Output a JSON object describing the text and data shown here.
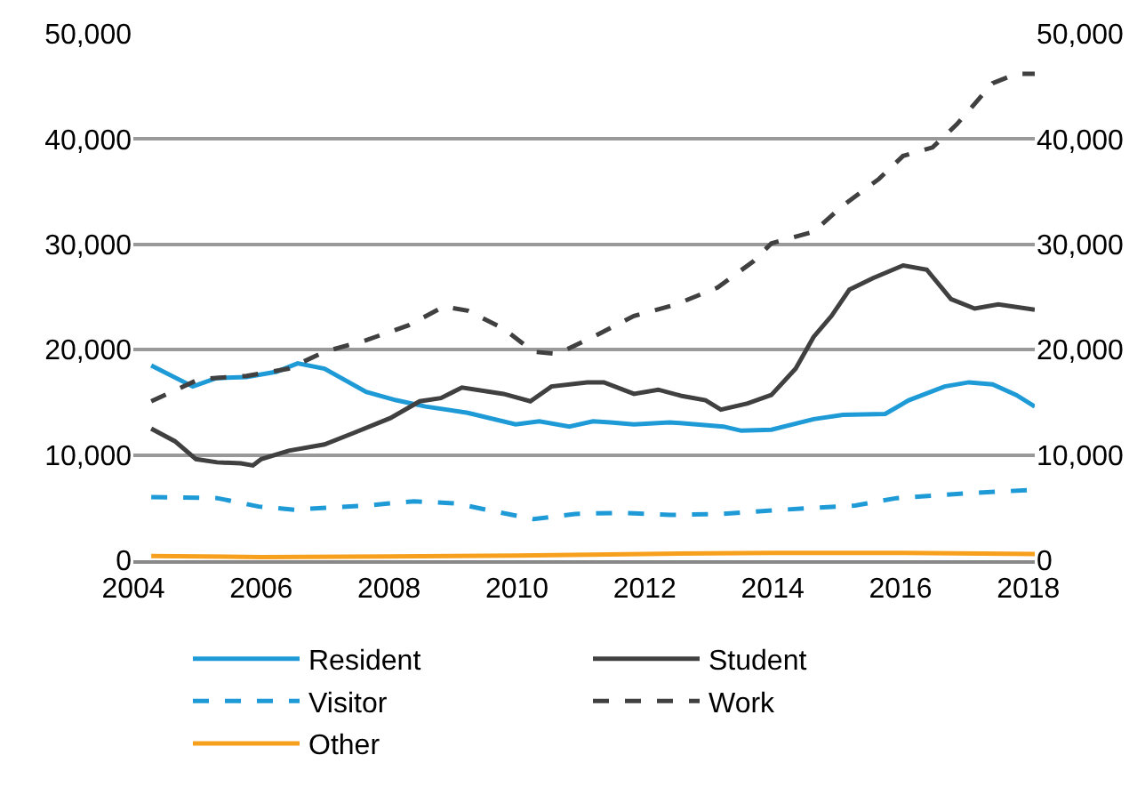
{
  "chart_data": {
    "type": "line",
    "legend": "bottom",
    "grid": "y",
    "marker": "none",
    "xlim": [
      2004,
      2018.1
    ],
    "xticks": [
      2004,
      2006,
      2008,
      2010,
      2012,
      2014,
      2016,
      2018
    ],
    "ylim": [
      0,
      50000
    ],
    "yticks": [
      0,
      {
        "value": 10000,
        "label": "10,000"
      },
      {
        "value": 20000,
        "label": "20,000"
      },
      {
        "value": 30000,
        "label": "30,000"
      },
      {
        "value": 40000,
        "label": "40,000"
      },
      {
        "value": 50000,
        "label": "50,000"
      }
    ],
    "y2lim": [
      0,
      50000
    ],
    "y2ticks": [
      0,
      {
        "value": 10000,
        "label": "10,000"
      },
      {
        "value": 20000,
        "label": "20,000"
      },
      {
        "value": 30000,
        "label": "30,000"
      },
      {
        "value": 40000,
        "label": "40,000"
      },
      {
        "value": 50000,
        "label": "50,000"
      }
    ],
    "series": [
      {
        "name": "Resident",
        "color": "#1e9bd7",
        "line_style": "solid",
        "x": [
          2004.28,
          2004.93,
          2005.3,
          2005.77,
          2006.24,
          2006.57,
          2006.99,
          2007.64,
          2008.11,
          2008.57,
          2009.23,
          2009.98,
          2010.35,
          2010.82,
          2011.19,
          2011.46,
          2011.83,
          2012.39,
          2013.23,
          2013.51,
          2013.98,
          2014.64,
          2015.1,
          2015.76,
          2016.13,
          2016.69,
          2017.07,
          2017.44,
          2017.81,
          2018.1
        ],
        "values": [
          18500,
          16500,
          17300,
          17400,
          17900,
          18700,
          18200,
          16000,
          15200,
          14600,
          14000,
          12900,
          13200,
          12700,
          13200,
          13100,
          12900,
          13100,
          12700,
          12300,
          12400,
          13400,
          13800,
          13900,
          15200,
          16500,
          16900,
          16700,
          15700,
          14600
        ]
      },
      {
        "name": "Student",
        "color": "#404040",
        "line_style": "solid",
        "x": [
          2004.28,
          2004.65,
          2004.98,
          2005.31,
          2005.68,
          2005.87,
          2006.0,
          2006.43,
          2006.99,
          2007.45,
          2008.02,
          2008.48,
          2008.81,
          2009.14,
          2009.79,
          2010.21,
          2010.54,
          2011.1,
          2011.36,
          2011.83,
          2012.21,
          2012.58,
          2012.95,
          2013.19,
          2013.61,
          2013.98,
          2014.36,
          2014.64,
          2014.92,
          2015.2,
          2015.57,
          2016.04,
          2016.41,
          2016.79,
          2017.16,
          2017.53,
          2018.1
        ],
        "values": [
          12500,
          11300,
          9600,
          9300,
          9200,
          9000,
          9600,
          10400,
          11000,
          12100,
          13500,
          15100,
          15400,
          16400,
          15800,
          15100,
          16500,
          16900,
          16900,
          15800,
          16200,
          15600,
          15200,
          14300,
          14900,
          15700,
          18200,
          21200,
          23200,
          25700,
          26800,
          28000,
          27600,
          24800,
          23900,
          24300,
          23800
        ]
      },
      {
        "name": "Visitor",
        "color": "#1e9bd7",
        "line_style": "dashed",
        "x": [
          2004.28,
          2005.31,
          2005.96,
          2006.52,
          2007.64,
          2008.39,
          2009.04,
          2009.6,
          2010.26,
          2010.91,
          2011.64,
          2012.39,
          2013.23,
          2014.17,
          2015.29,
          2015.94,
          2016.88,
          2018.1
        ],
        "values": [
          6000,
          5900,
          5100,
          4800,
          5200,
          5600,
          5400,
          4700,
          3900,
          4400,
          4500,
          4300,
          4400,
          4800,
          5200,
          5900,
          6300,
          6700
        ]
      },
      {
        "name": "Work",
        "color": "#404040",
        "line_style": "dashed",
        "x": [
          2004.28,
          2005.03,
          2005.77,
          2006.43,
          2006.99,
          2007.64,
          2008.3,
          2008.86,
          2009.23,
          2009.79,
          2010.26,
          2010.63,
          2011.19,
          2011.83,
          2012.49,
          2013.14,
          2013.7,
          2013.98,
          2014.64,
          2015.1,
          2015.66,
          2016.04,
          2016.5,
          2016.88,
          2017.44,
          2017.81,
          2018.1
        ],
        "values": [
          15100,
          17200,
          17500,
          18200,
          19800,
          20900,
          22300,
          24100,
          23700,
          22000,
          19800,
          19600,
          21200,
          23200,
          24300,
          25900,
          28400,
          30100,
          31200,
          33700,
          36200,
          38400,
          39200,
          41400,
          45300,
          46200,
          46200
        ]
      },
      {
        "name": "Other",
        "color": "#f7a01e",
        "line_style": "solid",
        "x": [
          2004.28,
          2006,
          2008,
          2010,
          2012,
          2014,
          2016,
          2018.1
        ],
        "values": [
          400,
          300,
          350,
          450,
          600,
          700,
          700,
          600
        ]
      }
    ]
  }
}
